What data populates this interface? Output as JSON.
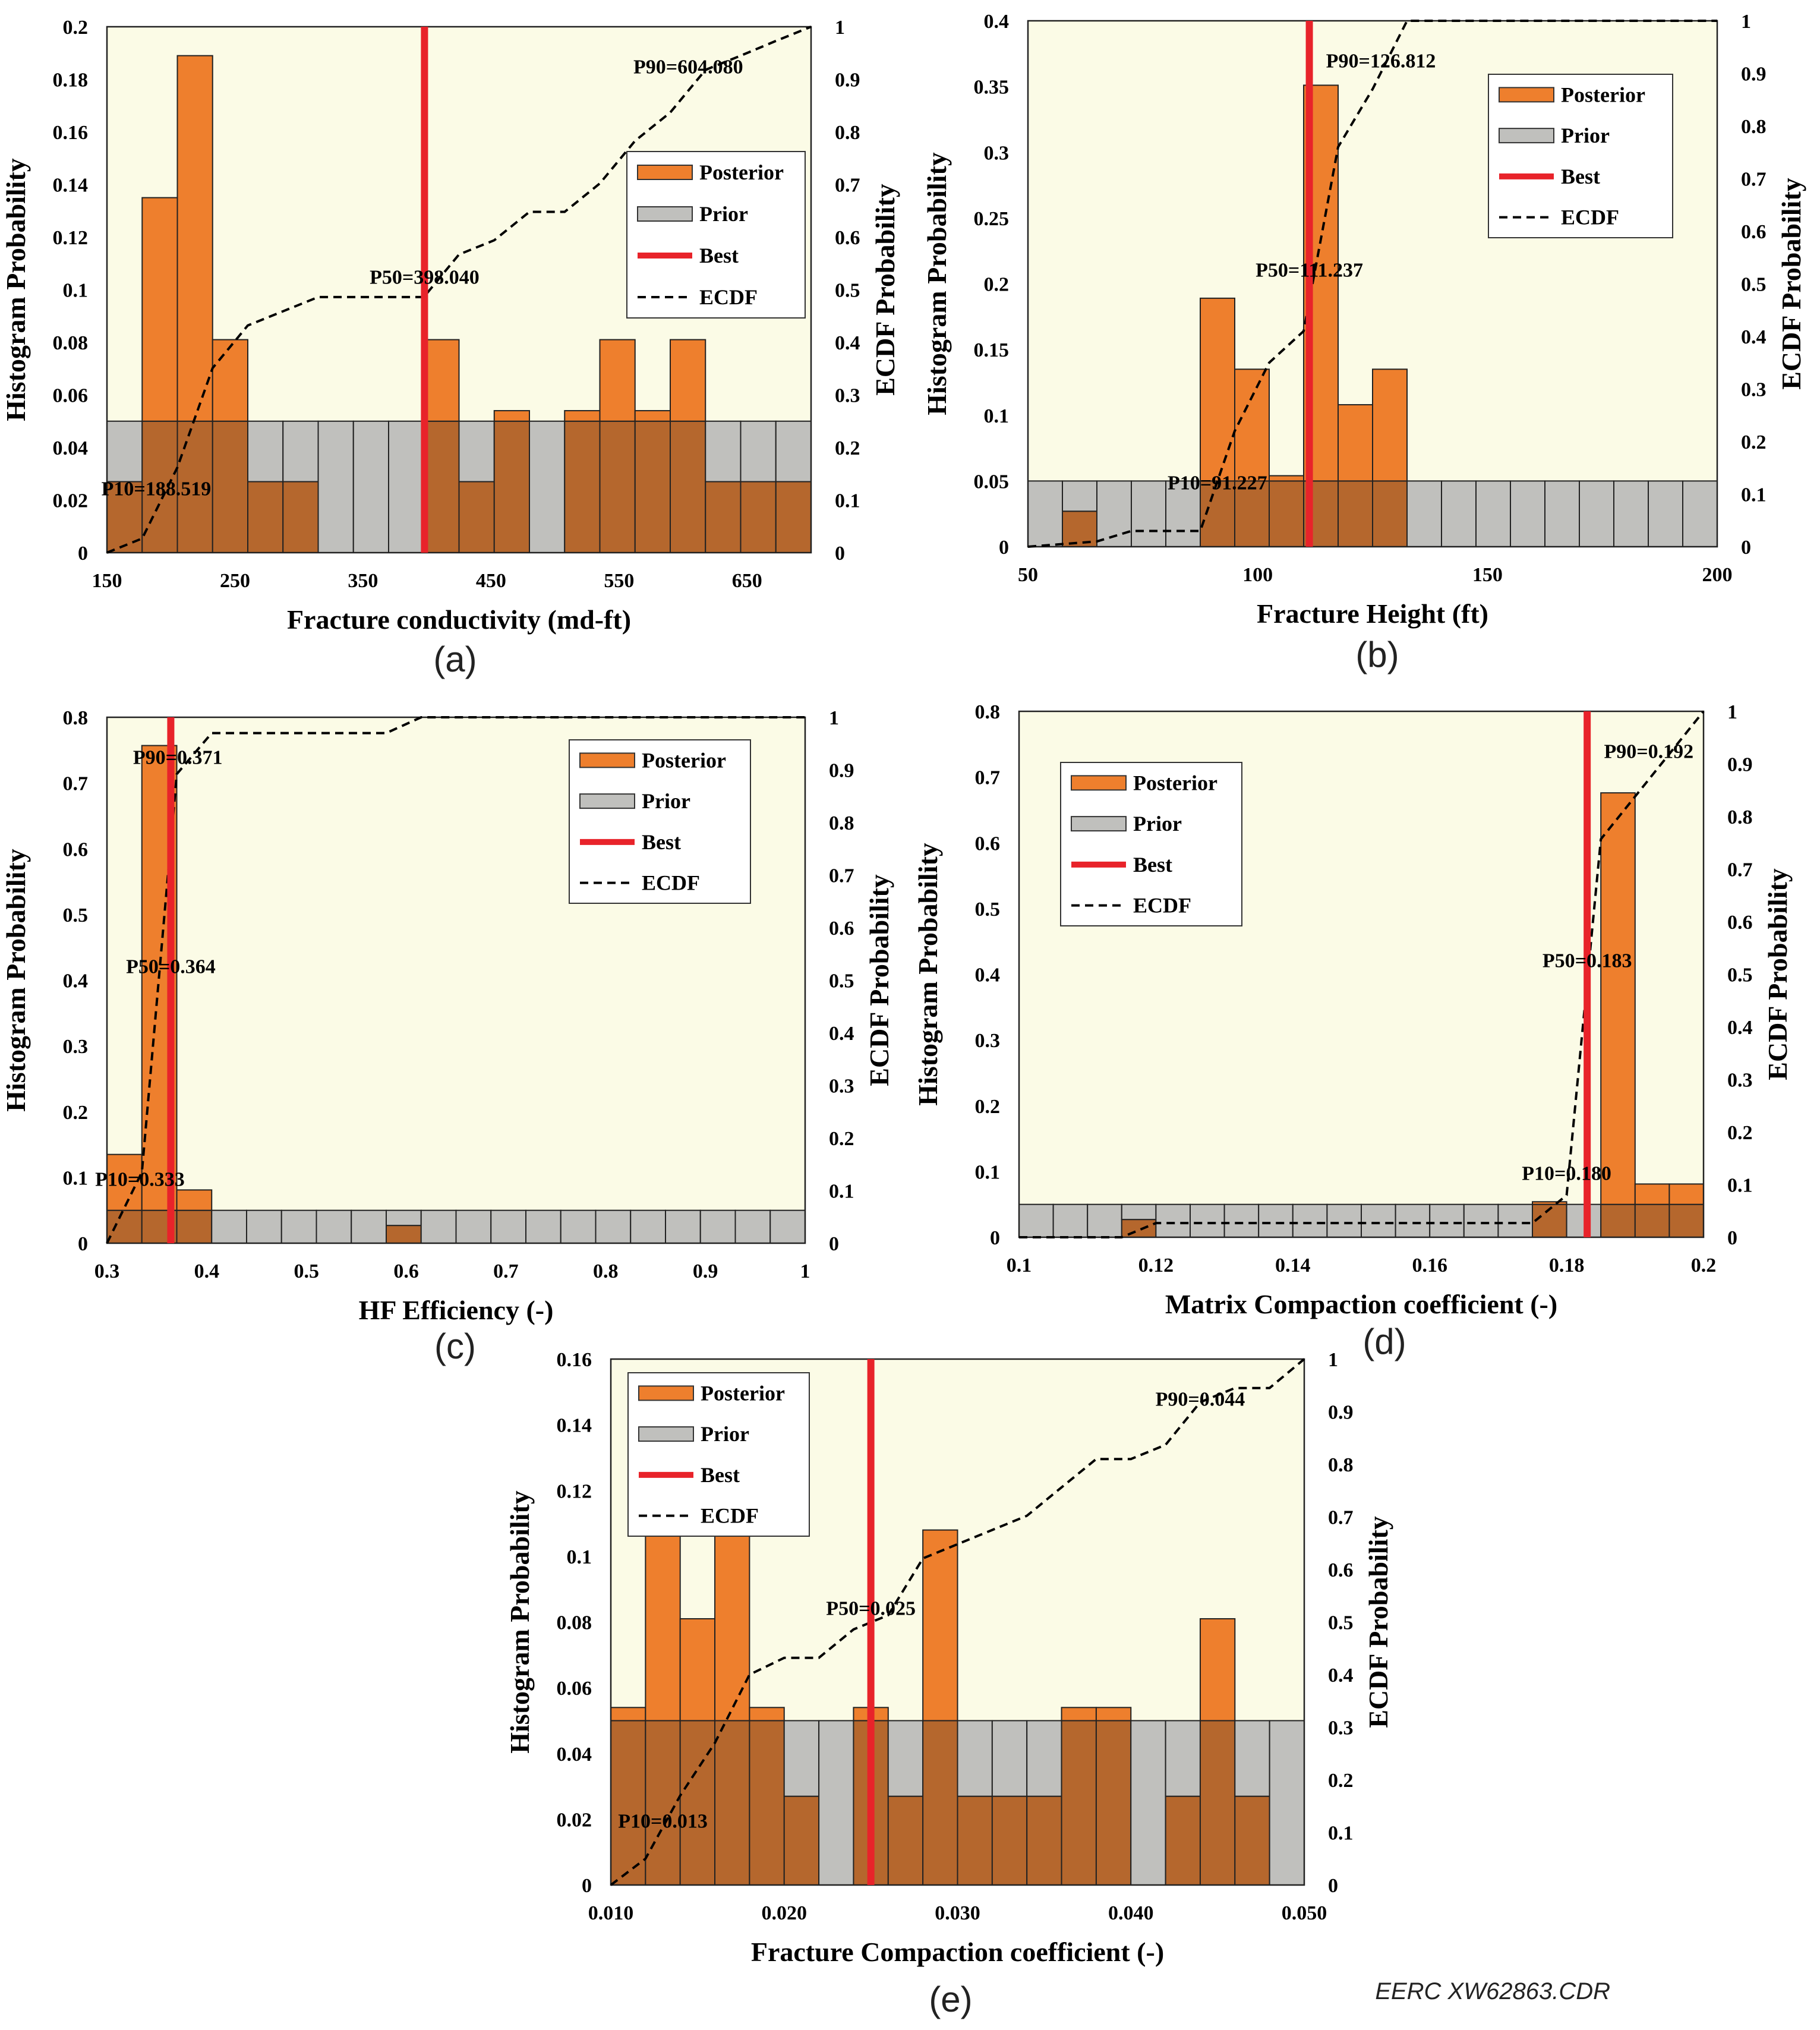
{
  "figure_credit": "EERC XW62863.CDR",
  "legend_labels": {
    "posterior": "Posterior",
    "prior": "Prior",
    "best": "Best",
    "ecdf": "ECDF"
  },
  "colors": {
    "posterior": "#ee7f2d",
    "prior": "#c0c0bd",
    "overlap": "#b5672d",
    "best": "#e8232a",
    "plot_bg": "#fbfbe6",
    "ecdf": "#000000"
  },
  "chart_data": [
    {
      "panel": "(a)",
      "type": "histogram",
      "xlabel": "Fracture conductivity (md-ft)",
      "ylabel": "Histogram Probability",
      "y2label": "ECDF Probability",
      "xlim": [
        150,
        700
      ],
      "ylim": [
        0,
        0.2
      ],
      "y2lim": [
        0,
        1
      ],
      "xticks": [
        150,
        250,
        350,
        450,
        550,
        650
      ],
      "yticks": [
        0,
        0.02,
        0.04,
        0.06,
        0.08,
        0.1,
        0.12,
        0.14,
        0.16,
        0.18,
        0.2
      ],
      "y2ticks": [
        0,
        0.1,
        0.2,
        0.3,
        0.4,
        0.5,
        0.6,
        0.7,
        0.8,
        0.9,
        1
      ],
      "bin_width": 27.5,
      "prior": 0.05,
      "posterior": [
        0.027,
        0.135,
        0.189,
        0.081,
        0.027,
        0.027,
        0,
        0,
        0,
        0.081,
        0.027,
        0.054,
        0,
        0.054,
        0.081,
        0.054,
        0.081,
        0.027,
        0.027,
        0.027
      ],
      "best": 398.04,
      "ecdf": [
        [
          150,
          0
        ],
        [
          177.5,
          0.027
        ],
        [
          205,
          0.162
        ],
        [
          232.5,
          0.351
        ],
        [
          260,
          0.432
        ],
        [
          287.5,
          0.459
        ],
        [
          315,
          0.486
        ],
        [
          342.5,
          0.486
        ],
        [
          370,
          0.486
        ],
        [
          397.5,
          0.486
        ],
        [
          425,
          0.567
        ],
        [
          452.5,
          0.594
        ],
        [
          480,
          0.648
        ],
        [
          507.5,
          0.648
        ],
        [
          535,
          0.702
        ],
        [
          562.5,
          0.783
        ],
        [
          590,
          0.837
        ],
        [
          617.5,
          0.918
        ],
        [
          645,
          0.945
        ],
        [
          672.5,
          0.973
        ],
        [
          700,
          1.0
        ]
      ],
      "annotations": [
        {
          "text": "P10=188.519",
          "x": 188.519,
          "y": 0.1
        },
        {
          "text": "P50=398.040",
          "x": 398.04,
          "y": 0.5
        },
        {
          "text": "P90=604.080",
          "x": 604.08,
          "y": 0.9
        }
      ],
      "legend_position": "right-middle"
    },
    {
      "panel": "(b)",
      "type": "histogram",
      "xlabel": "Fracture Height (ft)",
      "ylabel": "Histogram Probability",
      "y2label": "ECDF Probability",
      "xlim": [
        50,
        200
      ],
      "ylim": [
        0,
        0.4
      ],
      "y2lim": [
        0,
        1
      ],
      "xticks": [
        50,
        100,
        150,
        200
      ],
      "yticks": [
        0,
        0.05,
        0.1,
        0.15,
        0.2,
        0.25,
        0.3,
        0.35,
        0.4
      ],
      "y2ticks": [
        0,
        0.1,
        0.2,
        0.3,
        0.4,
        0.5,
        0.6,
        0.7,
        0.8,
        0.9,
        1
      ],
      "bin_width": 7.5,
      "prior": 0.05,
      "posterior": [
        0,
        0.027,
        0,
        0,
        0,
        0.189,
        0.135,
        0.054,
        0.351,
        0.108,
        0.135,
        0,
        0,
        0,
        0,
        0,
        0,
        0,
        0,
        0
      ],
      "best": 111.237,
      "ecdf": [
        [
          50,
          0
        ],
        [
          65,
          0.01
        ],
        [
          72.5,
          0.03
        ],
        [
          87.5,
          0.03
        ],
        [
          95,
          0.22
        ],
        [
          102.5,
          0.35
        ],
        [
          110,
          0.41
        ],
        [
          117.5,
          0.76
        ],
        [
          125,
          0.87
        ],
        [
          132.5,
          1.0
        ],
        [
          200,
          1.0
        ]
      ],
      "annotations": [
        {
          "text": "P10=91.227",
          "x": 91.227,
          "y": 0.1
        },
        {
          "text": "P50=111.237",
          "x": 111.237,
          "y": 0.5
        },
        {
          "text": "P90=126.812",
          "x": 126.812,
          "y": 0.9
        }
      ],
      "legend_position": "top-right"
    },
    {
      "panel": "(c)",
      "type": "histogram",
      "xlabel": "HF Efficiency (-)",
      "ylabel": "Histogram Probability",
      "y2label": "ECDF Probability",
      "xlim": [
        0.3,
        1
      ],
      "ylim": [
        0,
        0.8
      ],
      "y2lim": [
        0,
        1
      ],
      "xticks": [
        0.3,
        0.4,
        0.5,
        0.6,
        0.7,
        0.8,
        0.9,
        1
      ],
      "yticks": [
        0,
        0.1,
        0.2,
        0.3,
        0.4,
        0.5,
        0.6,
        0.7,
        0.8
      ],
      "y2ticks": [
        0,
        0.1,
        0.2,
        0.3,
        0.4,
        0.5,
        0.6,
        0.7,
        0.8,
        0.9,
        1
      ],
      "bin_width": 0.035,
      "prior": 0.05,
      "posterior": [
        0.135,
        0.757,
        0.081,
        0,
        0,
        0,
        0,
        0,
        0.027,
        0,
        0,
        0,
        0,
        0,
        0,
        0,
        0,
        0,
        0,
        0
      ],
      "best": 0.364,
      "ecdf": [
        [
          0.3,
          0
        ],
        [
          0.335,
          0.135
        ],
        [
          0.37,
          0.892
        ],
        [
          0.405,
          0.97
        ],
        [
          0.58,
          0.97
        ],
        [
          0.615,
          1.0
        ],
        [
          1.0,
          1.0
        ]
      ],
      "annotations": [
        {
          "text": "P10=0.333",
          "x": 0.333,
          "y": 0.1
        },
        {
          "text": "P50=0.364",
          "x": 0.364,
          "y": 0.5
        },
        {
          "text": "P90=0.371",
          "x": 0.371,
          "y": 0.9
        }
      ],
      "legend_position": "top-right"
    },
    {
      "panel": "(d)",
      "type": "histogram",
      "xlabel": "Matrix Compaction coefficient (-)",
      "ylabel": "Histogram Probability",
      "y2label": "ECDF Probability",
      "xlim": [
        0.1,
        0.2
      ],
      "ylim": [
        0,
        0.8
      ],
      "y2lim": [
        0,
        1
      ],
      "xticks": [
        0.1,
        0.12,
        0.14,
        0.16,
        0.18,
        0.2
      ],
      "yticks": [
        0,
        0.1,
        0.2,
        0.3,
        0.4,
        0.5,
        0.6,
        0.7,
        0.8
      ],
      "y2ticks": [
        0,
        0.1,
        0.2,
        0.3,
        0.4,
        0.5,
        0.6,
        0.7,
        0.8,
        0.9,
        1
      ],
      "bin_width": 0.005,
      "prior": 0.05,
      "posterior": [
        0,
        0,
        0,
        0.027,
        0,
        0,
        0,
        0,
        0,
        0,
        0,
        0,
        0,
        0,
        0,
        0.054,
        0,
        0.676,
        0.081,
        0.081,
        0.081
      ],
      "best": 0.183,
      "ecdf": [
        [
          0.1,
          0
        ],
        [
          0.115,
          0
        ],
        [
          0.12,
          0.027
        ],
        [
          0.175,
          0.027
        ],
        [
          0.18,
          0.08
        ],
        [
          0.185,
          0.757
        ],
        [
          0.19,
          0.838
        ],
        [
          0.195,
          0.919
        ],
        [
          0.2,
          1.0
        ]
      ],
      "annotations": [
        {
          "text": "P10=0.180",
          "x": 0.18,
          "y": 0.1
        },
        {
          "text": "P50=0.183",
          "x": 0.183,
          "y": 0.5
        },
        {
          "text": "P90=0.192",
          "x": 0.192,
          "y": 0.9
        }
      ],
      "legend_position": "top-left"
    },
    {
      "panel": "(e)",
      "type": "histogram",
      "xlabel": "Fracture Compaction coefficient (-)",
      "ylabel": "Histogram Probability",
      "y2label": "ECDF Probability",
      "xlim": [
        0.01,
        0.05
      ],
      "ylim": [
        0,
        0.16
      ],
      "y2lim": [
        0,
        1
      ],
      "xticks": [
        "0.010",
        "0.020",
        "0.030",
        "0.040",
        "0.050"
      ],
      "yticks": [
        0,
        0.02,
        0.04,
        0.06,
        0.08,
        0.1,
        0.12,
        0.14,
        0.16
      ],
      "y2ticks": [
        0,
        0.1,
        0.2,
        0.3,
        0.4,
        0.5,
        0.6,
        0.7,
        0.8,
        0.9,
        1
      ],
      "bin_width": 0.002,
      "prior": 0.05,
      "posterior": [
        0.054,
        0.135,
        0.081,
        0.135,
        0.054,
        0.027,
        0,
        0.054,
        0.027,
        0.108,
        0.027,
        0.027,
        0.027,
        0.054,
        0.054,
        0,
        0.027,
        0.081,
        0.027,
        0,
        0.054
      ],
      "best": 0.025,
      "ecdf": [
        [
          0.01,
          0
        ],
        [
          0.012,
          0.05
        ],
        [
          0.014,
          0.17
        ],
        [
          0.016,
          0.27
        ],
        [
          0.018,
          0.4
        ],
        [
          0.02,
          0.432
        ],
        [
          0.022,
          0.432
        ],
        [
          0.024,
          0.486
        ],
        [
          0.026,
          0.513
        ],
        [
          0.028,
          0.621
        ],
        [
          0.03,
          0.648
        ],
        [
          0.032,
          0.675
        ],
        [
          0.034,
          0.702
        ],
        [
          0.036,
          0.756
        ],
        [
          0.038,
          0.81
        ],
        [
          0.04,
          0.81
        ],
        [
          0.042,
          0.837
        ],
        [
          0.044,
          0.918
        ],
        [
          0.046,
          0.945
        ],
        [
          0.048,
          0.945
        ],
        [
          0.05,
          1.0
        ]
      ],
      "annotations": [
        {
          "text": "P10=0.013",
          "x": 0.013,
          "y": 0.1
        },
        {
          "text": "P50=0.025",
          "x": 0.025,
          "y": 0.5
        },
        {
          "text": "P90=0.044",
          "x": 0.044,
          "y": 0.9
        }
      ],
      "legend_position": "top-left"
    }
  ]
}
